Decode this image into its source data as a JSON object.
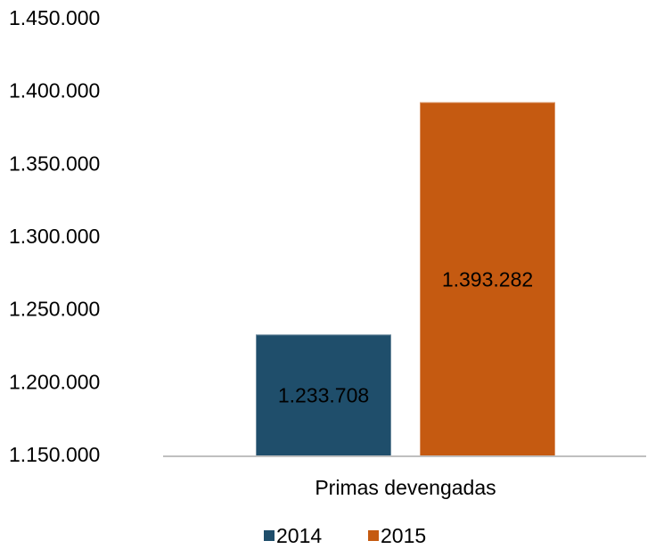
{
  "chart_data": {
    "type": "bar",
    "categories": [
      "Primas devengadas"
    ],
    "series": [
      {
        "name": "2014",
        "color": "#1f4e6b",
        "values": [
          1233708
        ],
        "value_labels": [
          "1.233.708"
        ]
      },
      {
        "name": "2015",
        "color": "#c55a11",
        "values": [
          1393282
        ],
        "value_labels": [
          "1.393.282"
        ]
      }
    ],
    "ylim": [
      1150000,
      1450000
    ],
    "yticks": [
      {
        "value": 1150000,
        "label": "1.150.000"
      },
      {
        "value": 1200000,
        "label": "1.200.000"
      },
      {
        "value": 1250000,
        "label": "1.250.000"
      },
      {
        "value": 1300000,
        "label": "1.300.000"
      },
      {
        "value": 1350000,
        "label": "1.350.000"
      },
      {
        "value": 1400000,
        "label": "1.400.000"
      },
      {
        "value": 1450000,
        "label": "1.450.000"
      }
    ],
    "grid": false,
    "legend": "bottom"
  }
}
